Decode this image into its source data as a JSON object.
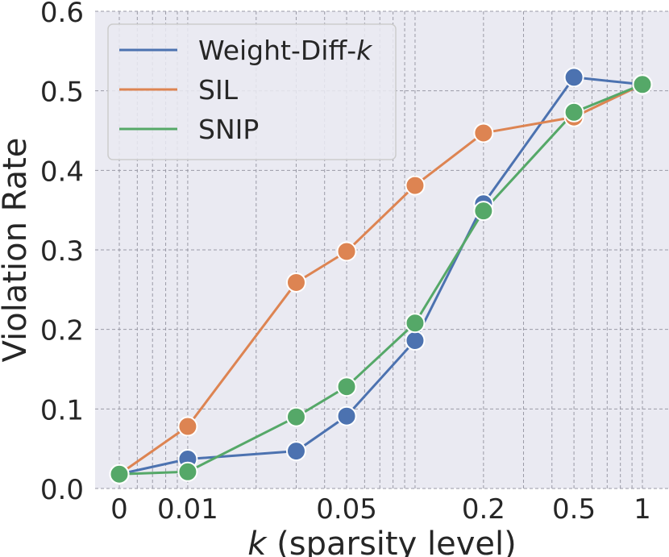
{
  "chart_data": {
    "type": "line",
    "xlabel_var": "k",
    "xlabel_rest": " (sparsity level)",
    "ylabel": "Violation Rate",
    "ylim": [
      0.0,
      0.6
    ],
    "yticks": [
      "0.0",
      "0.1",
      "0.2",
      "0.3",
      "0.4",
      "0.5",
      "0.6"
    ],
    "xscale": "log",
    "xticks": [
      {
        "label": "0",
        "value": 0.005
      },
      {
        "label": "0.01",
        "value": 0.01
      },
      {
        "label": "0.05",
        "value": 0.05
      },
      {
        "label": "0.2",
        "value": 0.2
      },
      {
        "label": "0.5",
        "value": 0.5
      },
      {
        "label": "1",
        "value": 1
      }
    ],
    "grid": true,
    "legend_position": "top-left",
    "series": [
      {
        "name_main": "Weight-Diff-",
        "name_italic": "k",
        "color": "#4c72b0",
        "x": [
          0.005,
          0.01,
          0.03,
          0.05,
          0.1,
          0.2,
          0.5,
          1
        ],
        "values": [
          0.018,
          0.037,
          0.047,
          0.091,
          0.186,
          0.358,
          0.517,
          0.508
        ]
      },
      {
        "name_main": "SIL",
        "name_italic": "",
        "color": "#dd8452",
        "x": [
          0.005,
          0.01,
          0.03,
          0.05,
          0.1,
          0.2,
          0.5,
          1
        ],
        "values": [
          0.018,
          0.078,
          0.259,
          0.298,
          0.381,
          0.447,
          0.467,
          0.508
        ]
      },
      {
        "name_main": "SNIP",
        "name_italic": "",
        "color": "#55a868",
        "x": [
          0.005,
          0.01,
          0.03,
          0.05,
          0.1,
          0.2,
          0.5,
          1
        ],
        "values": [
          0.018,
          0.021,
          0.09,
          0.128,
          0.208,
          0.349,
          0.473,
          0.508
        ]
      }
    ]
  }
}
